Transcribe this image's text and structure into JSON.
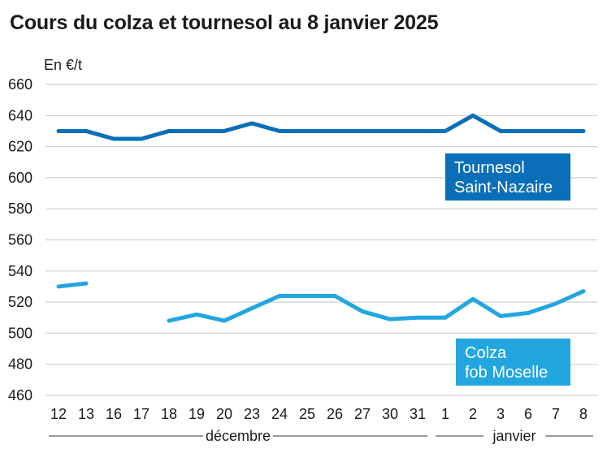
{
  "title": "Cours du colza et tournesol au 8 janvier 2025",
  "chart_data": {
    "type": "line",
    "title": "Cours du colza et tournesol au 8 janvier 2025",
    "ylabel": "En €/t",
    "ylim": [
      460,
      660
    ],
    "yticks": [
      460,
      480,
      500,
      520,
      540,
      560,
      580,
      600,
      620,
      640,
      660
    ],
    "categories": [
      "12",
      "13",
      "16",
      "17",
      "18",
      "19",
      "20",
      "23",
      "24",
      "25",
      "26",
      "27",
      "30",
      "31",
      "1",
      "2",
      "3",
      "6",
      "7",
      "8"
    ],
    "months": [
      {
        "label": "décembre",
        "from": 0,
        "to": 13
      },
      {
        "label": "janvier",
        "from": 14,
        "to": 19
      }
    ],
    "grid": true,
    "series": [
      {
        "name": "Tournesol Saint-Nazaire",
        "name_lines": [
          "Tournesol",
          "Saint-Nazaire"
        ],
        "color": "#0a6fb8",
        "values": [
          630,
          630,
          625,
          625,
          630,
          630,
          630,
          635,
          630,
          630,
          630,
          630,
          630,
          630,
          630,
          640,
          630,
          630,
          630,
          630
        ]
      },
      {
        "name": "Colza fob Moselle",
        "name_lines": [
          "Colza",
          "fob Moselle"
        ],
        "color": "#22a6e0",
        "values": [
          530,
          532,
          null,
          null,
          508,
          512,
          508,
          516,
          524,
          524,
          524,
          514,
          509,
          510,
          510,
          522,
          511,
          513,
          519,
          527
        ]
      }
    ]
  }
}
